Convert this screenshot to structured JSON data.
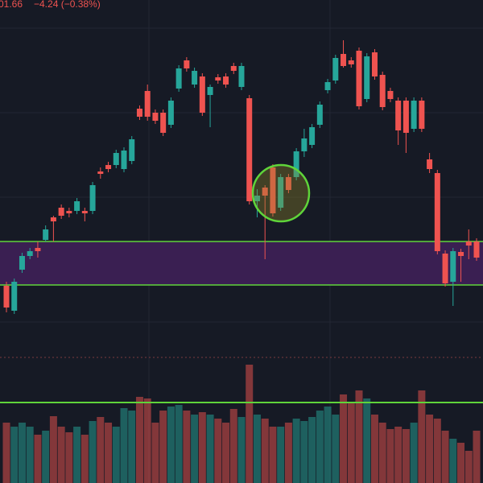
{
  "chart_data": {
    "type": "candlestick",
    "header_price": "01.66",
    "header_change": "−4.24 (−0.38%)",
    "up_color": "#26a69a",
    "down_color": "#ef5350",
    "open": [
      1041.25,
      1033.5,
      1046.25,
      1050.5,
      1053,
      1055.5,
      1062.5,
      1065.5,
      1064.5,
      1064.5,
      1064.5,
      1064.5,
      1076.75,
      1078.75,
      1078.75,
      1077.5,
      1080,
      1096.25,
      1101.75,
      1095,
      1095,
      1091.25,
      1102.5,
      1111.25,
      1103.75,
      1106.25,
      1100.5,
      1106,
      1106.25,
      1109.5,
      1103,
      1099.5,
      1067.5,
      1071.75,
      1078,
      1065.5,
      1075,
      1075,
      1083,
      1085,
      1091.25,
      1102,
      1105,
      1113.25,
      1111.25,
      1114.25,
      1099.25,
      1113.75,
      1106.75,
      1101.75,
      1098.75,
      1098.75,
      1090,
      1098.75,
      1080.5,
      1076.25,
      1051.25,
      1042.5,
      1051.75,
      1055,
      1055
    ],
    "high": [
      1042.5,
      1043.5,
      1051.5,
      1053,
      1055,
      1060,
      1063,
      1066.5,
      1065.5,
      1068.5,
      1065.5,
      1073.5,
      1078,
      1079.75,
      1083.5,
      1084.25,
      1087.75,
      1097.25,
      1103.75,
      1096,
      1096,
      1099.75,
      1109.75,
      1112.25,
      1109,
      1107.25,
      1103.75,
      1107,
      1107.25,
      1110.5,
      1110.5,
      1100.5,
      1071.25,
      1072.5,
      1079,
      1076,
      1076,
      1084,
      1090,
      1091.5,
      1098.5,
      1105.5,
      1113,
      1117.5,
      1112.25,
      1115.25,
      1113.5,
      1114.75,
      1107.75,
      1102.75,
      1099.75,
      1099.75,
      1099.75,
      1099.75,
      1082.5,
      1077.25,
      1052.25,
      1053,
      1052.75,
      1058.75,
      1056
    ],
    "low": [
      1033,
      1032.5,
      1045.25,
      1049.5,
      1050,
      1055,
      1055,
      1062,
      1062.5,
      1063.5,
      1061.25,
      1063.5,
      1074.5,
      1076.5,
      1077.75,
      1076.5,
      1079,
      1092.75,
      1092.5,
      1091.5,
      1087.75,
      1090.25,
      1101.5,
      1107.75,
      1102.75,
      1094,
      1090.5,
      1104,
      1102.75,
      1107,
      1102,
      1066.5,
      1062.5,
      1049.5,
      1062.75,
      1064.5,
      1070,
      1074,
      1081.25,
      1084,
      1090.25,
      1101,
      1104,
      1109,
      1109,
      1096,
      1098.25,
      1105.25,
      1095.75,
      1098.25,
      1085,
      1082.5,
      1089,
      1089,
      1076.25,
      1051,
      1041,
      1035,
      1042.5,
      1049.5,
      1049
    ],
    "close": [
      1034.5,
      1042.5,
      1050.5,
      1052,
      1052,
      1058.75,
      1061.25,
      1063,
      1063.75,
      1067.5,
      1063.75,
      1072.5,
      1076,
      1077.5,
      1082.5,
      1083.25,
      1086.75,
      1093.75,
      1093.75,
      1092.5,
      1088.75,
      1098.75,
      1108.75,
      1108.75,
      1108,
      1095,
      1103,
      1105,
      1103.75,
      1108,
      1109.5,
      1067.5,
      1069.25,
      1069.25,
      1063.75,
      1075,
      1071,
      1083,
      1087,
      1090.5,
      1097.5,
      1104.5,
      1112,
      1109.5,
      1110,
      1097,
      1112.5,
      1106.25,
      1096.75,
      1099.25,
      1089.5,
      1088.75,
      1098.75,
      1090,
      1077.5,
      1052,
      1042,
      1052,
      1050.5,
      1053.75,
      1050
    ],
    "volume": [
      75,
      70,
      75,
      70,
      60,
      65,
      83,
      70,
      63,
      70,
      60,
      77,
      82,
      75,
      70,
      93,
      90,
      107,
      105,
      75,
      90,
      95,
      97,
      90,
      85,
      88,
      85,
      80,
      75,
      92,
      82,
      147,
      85,
      80,
      70,
      70,
      75,
      80,
      77,
      82,
      90,
      95,
      85,
      110,
      100,
      115,
      105,
      85,
      75,
      67,
      70,
      67,
      75,
      115,
      85,
      80,
      65,
      55,
      50,
      40,
      65
    ],
    "ylim": [
      1020,
      1130
    ],
    "volume_ylim": [
      0,
      150
    ],
    "levels": [
      1055,
      1041.5
    ],
    "level_color": "#5fd43a",
    "zone_color": "#3a1f52",
    "volume_level": 100
  }
}
